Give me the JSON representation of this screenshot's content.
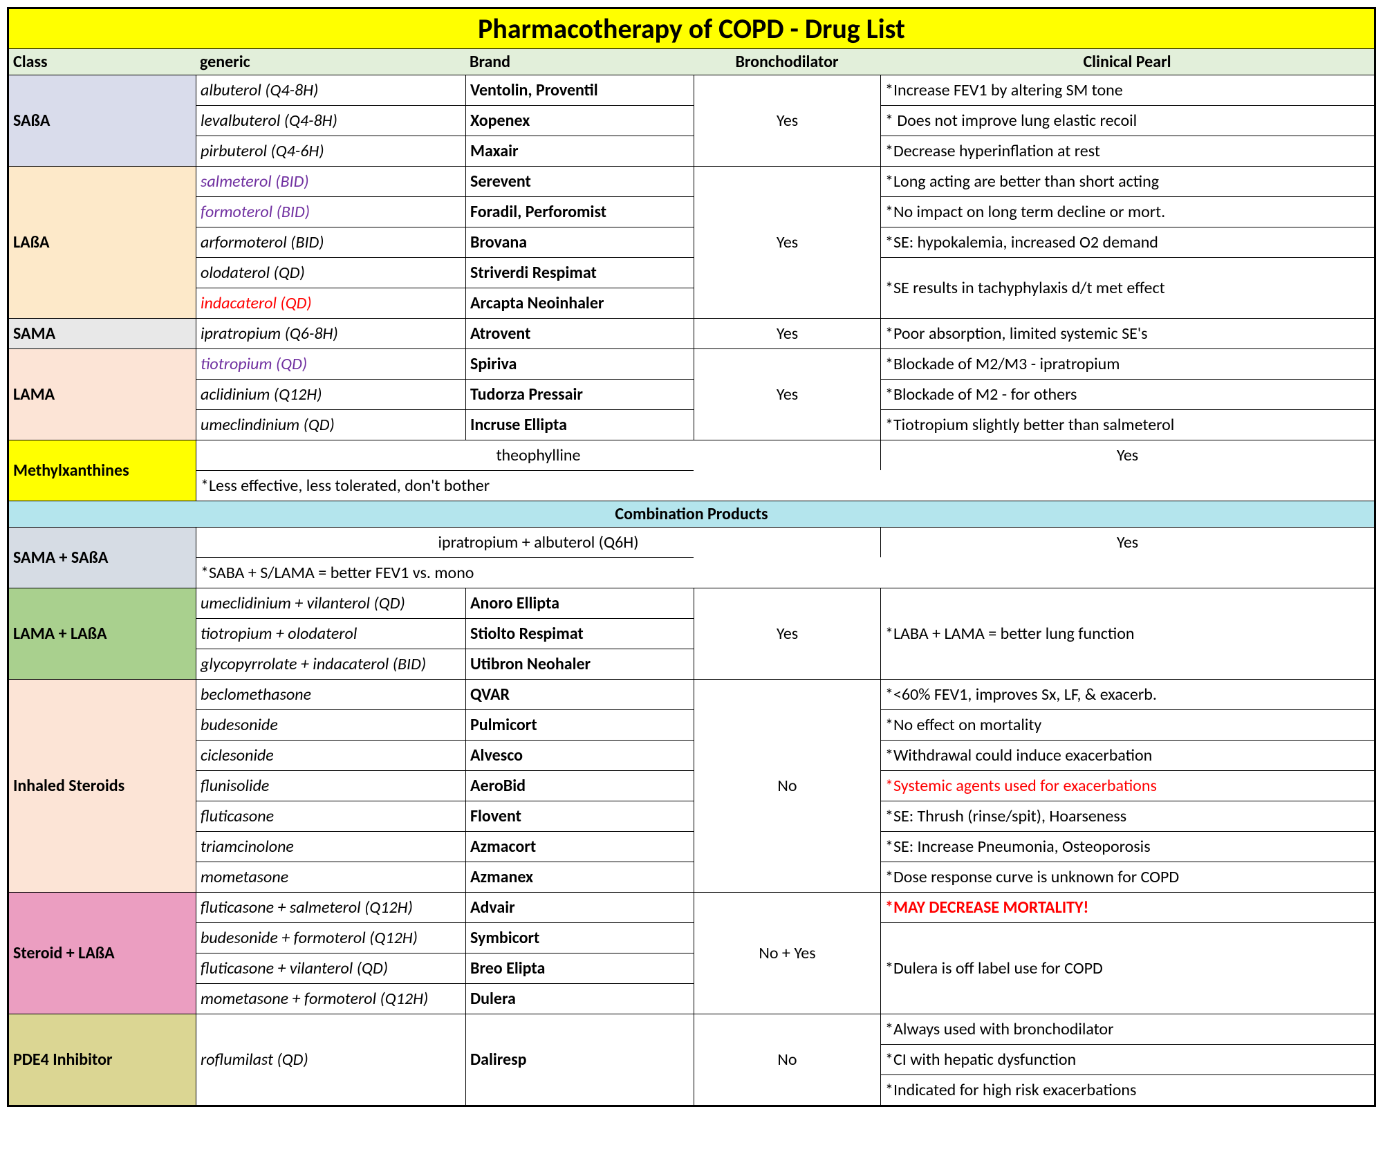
{
  "title": "Pharmacotherapy of COPD - Drug List",
  "headers": {
    "class": "Class",
    "generic": "generic",
    "brand": "Brand",
    "bronch": "Bronchodilator",
    "pearl": "Clinical Pearl"
  },
  "combo_header": "Combination Products",
  "sections": [
    {
      "class": "SAßA",
      "bg": "bg-saba",
      "bronch": "Yes",
      "rows": [
        {
          "g": "albuterol (Q4-8H)",
          "b": "Ventolin, Proventil",
          "p": "*Increase FEV1 by altering SM tone"
        },
        {
          "g": "levalbuterol (Q4-8H)",
          "b": "Xopenex",
          "p": "* Does not improve lung elastic recoil"
        },
        {
          "g": "pirbuterol (Q4-6H)",
          "b": "Maxair",
          "p": "*Decrease hyperinflation at rest"
        }
      ]
    },
    {
      "class": "LAßA",
      "bg": "bg-laba",
      "bronch": "Yes",
      "rows": [
        {
          "g": "salmeterol (BID)",
          "gClass": "purple",
          "b": "Serevent",
          "p": "*Long acting are better than short acting"
        },
        {
          "g": "formoterol (BID)",
          "gClass": "purple",
          "b": "Foradil, Perforomist",
          "p": "*No impact on long term decline or mort."
        },
        {
          "g": "arformoterol (BID)",
          "b": "Brovana",
          "p": "*SE: hypokalemia, increased O2 demand"
        },
        {
          "g": "olodaterol (QD)",
          "b": "Striverdi Respimat",
          "pMergeNext": true,
          "p": "*SE results in tachyphylaxis d/t met effect"
        },
        {
          "g": "indacaterol (QD)",
          "gClass": "red",
          "b": "Arcapta Neoinhaler"
        }
      ]
    },
    {
      "class": "SAMA",
      "bg": "bg-sama",
      "bronch": "Yes",
      "rows": [
        {
          "g": "ipratropium (Q6-8H)",
          "b": "Atrovent",
          "p": "*Poor absorption, limited systemic SE's"
        }
      ]
    },
    {
      "class": "LAMA",
      "bg": "bg-lama",
      "bronch": "Yes",
      "rows": [
        {
          "g": "tiotropium (QD)",
          "gClass": "purple",
          "b": "Spiriva",
          "p": "*Blockade of M2/M3 - ipratropium"
        },
        {
          "g": "aclidinium (Q12H)",
          "b": "Tudorza Pressair",
          "p": "*Blockade of M2 - for others"
        },
        {
          "g": "umeclindinium (QD)",
          "b": "Incruse Ellipta",
          "p": "*Tiotropium slightly better than salmeterol"
        }
      ]
    },
    {
      "class": "Methylxanthines",
      "bg": "bg-methyl",
      "bronch": "Yes",
      "rows": [
        {
          "gSpan2": "theophylline",
          "p": "*Less effective, less tolerated, don't bother"
        }
      ]
    }
  ],
  "combo_sections": [
    {
      "class": "SAMA + SAßA",
      "bg": "bg-samasaba",
      "bronch": "Yes",
      "rows": [
        {
          "gSpan2": "ipratropium + albuterol (Q6H)",
          "p": "*SABA + S/LAMA = better FEV1 vs. mono"
        }
      ]
    },
    {
      "class": "LAMA + LAßA",
      "bg": "bg-lamalaba",
      "bronch": "Yes",
      "pearlMerged": "*LABA + LAMA = better lung function",
      "rows": [
        {
          "g": "umeclidinium + vilanterol (QD)",
          "b": "Anoro Ellipta"
        },
        {
          "g": "tiotropium + olodaterol",
          "b": "Stiolto Respimat"
        },
        {
          "g": "glycopyrrolate + indacaterol (BID)",
          "b": "Utibron Neohaler"
        }
      ]
    },
    {
      "class": "Inhaled Steroids",
      "bg": "bg-steroids",
      "bronch": "No",
      "rows": [
        {
          "g": "beclomethasone",
          "b": "QVAR",
          "p": "*<60% FEV1, improves Sx, LF, & exacerb."
        },
        {
          "g": "budesonide",
          "b": "Pulmicort",
          "p": "*No effect on mortality"
        },
        {
          "g": "ciclesonide",
          "b": "Alvesco",
          "p": "*Withdrawal could induce exacerbation"
        },
        {
          "g": "flunisolide",
          "b": "AeroBid",
          "p": "*Systemic agents used for exacerbations",
          "pClass": "red"
        },
        {
          "g": "fluticasone",
          "b": "Flovent",
          "p": "*SE: Thrush (rinse/spit), Hoarseness"
        },
        {
          "g": "triamcinolone",
          "b": "Azmacort",
          "p": "*SE: Increase Pneumonia, Osteoporosis"
        },
        {
          "g": "mometasone",
          "b": "Azmanex",
          "p": "*Dose response curve is unknown for COPD"
        }
      ]
    },
    {
      "class": "Steroid + LAßA",
      "bg": "bg-steroidlaba",
      "bronch": "No + Yes",
      "rows": [
        {
          "g": "fluticasone + salmeterol (Q12H)",
          "b": "Advair",
          "p": "*MAY DECREASE MORTALITY!",
          "pClass": "red-bold"
        },
        {
          "g": "budesonide + formoterol (Q12H)",
          "b": "Symbicort",
          "pMergeNext": true,
          "pMergeCount": 3,
          "p": "*Dulera is off label use for COPD"
        },
        {
          "g": "fluticasone + vilanterol (QD)",
          "b": "Breo Elipta"
        },
        {
          "g": "mometasone + formoterol (Q12H)",
          "b": "Dulera"
        }
      ]
    },
    {
      "class": "PDE4 Inhibitor",
      "bg": "bg-pde4",
      "bronch": "No",
      "genericMerged": "roflumilast (QD)",
      "brandMerged": "Daliresp",
      "pearls": [
        "*Always used with bronchodilator",
        "*CI with hepatic dysfunction",
        "*Indicated for high risk exacerbations"
      ]
    }
  ]
}
